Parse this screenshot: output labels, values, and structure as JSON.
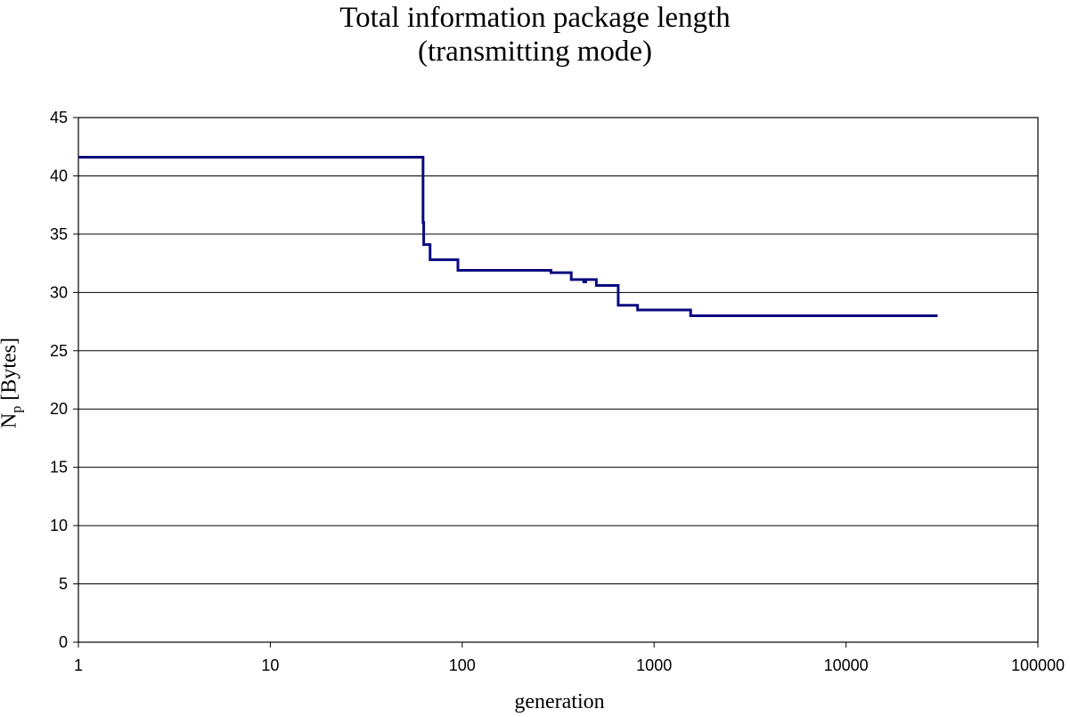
{
  "chart_data": {
    "type": "line",
    "title": "Total information package length",
    "subtitle": "(transmitting mode)",
    "xlabel": "generation",
    "ylabel": {
      "main": "N",
      "sub": "p",
      "unit": "[Bytes]"
    },
    "x_scale": "log",
    "xlim": [
      1,
      100000
    ],
    "ylim": [
      0,
      45
    ],
    "x_ticks": [
      "1",
      "10",
      "100",
      "1000",
      "10000",
      "100000"
    ],
    "y_ticks": [
      "0",
      "5",
      "10",
      "15",
      "20",
      "25",
      "30",
      "35",
      "40",
      "45"
    ],
    "grid": "horizontal",
    "legend": "none",
    "line_color": "#0a0a80",
    "series": [
      {
        "step": true,
        "x": [
          1,
          62,
          62.5,
          63,
          68,
          95,
          290,
          370,
          430,
          440,
          500,
          650,
          820,
          1550,
          30000
        ],
        "y": [
          41.6,
          41.6,
          36,
          34.1,
          32.8,
          31.9,
          31.7,
          31.1,
          30.9,
          31.1,
          30.6,
          28.9,
          28.5,
          28.0,
          28.0
        ]
      }
    ]
  }
}
